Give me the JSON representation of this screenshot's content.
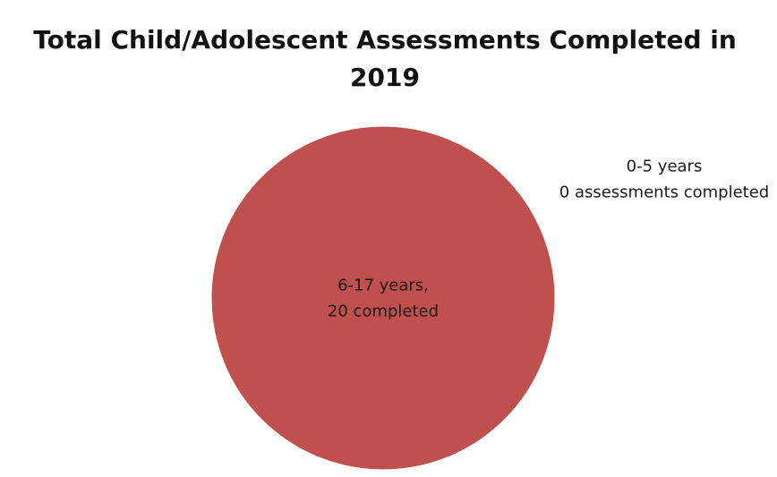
{
  "chart_data": {
    "type": "pie",
    "title": "Total Child/Adolescent Assessments Completed in 2019",
    "slices": [
      {
        "category": "6-17 years",
        "value": 20,
        "label_lines": [
          "6-17 years,",
          "20 completed"
        ],
        "color": "#c0504d"
      },
      {
        "category": "0-5 years",
        "value": 0,
        "label_lines": [
          "0-5 years",
          "0 assessments completed"
        ],
        "color": "#4f81bd"
      }
    ],
    "legend": "none"
  }
}
